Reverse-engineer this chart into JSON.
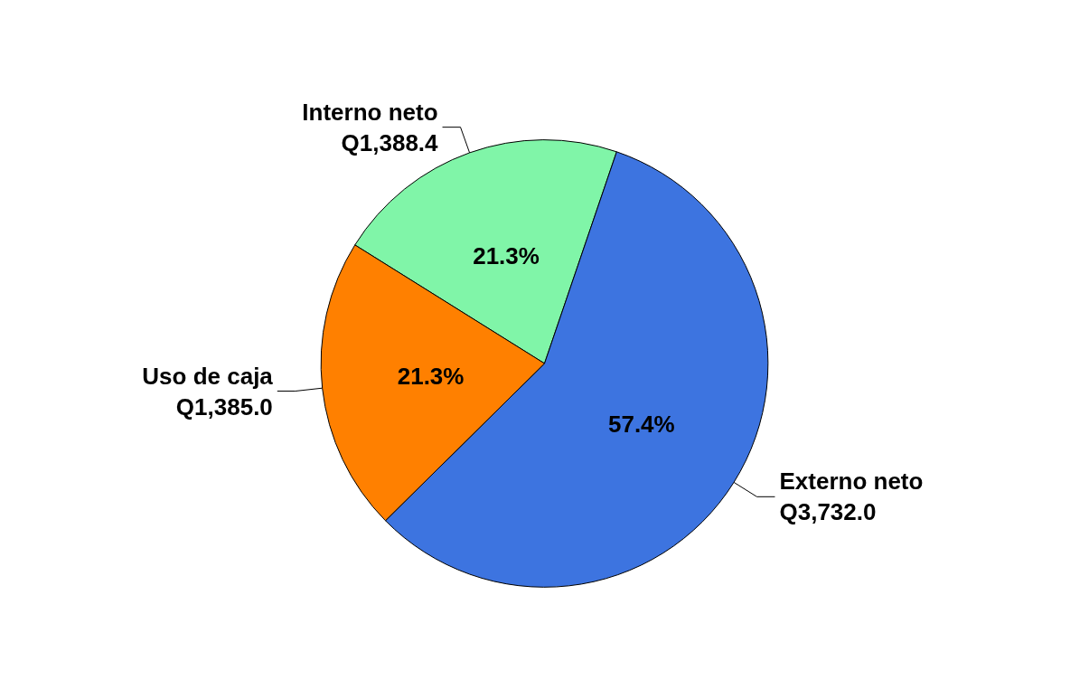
{
  "chart_data": {
    "type": "pie",
    "categories": [
      "Interno neto",
      "Externo neto",
      "Uso de caja"
    ],
    "values": [
      1388.4,
      3732.0,
      1385.0
    ],
    "value_labels": [
      "Q1,388.4",
      "Q3,732.0",
      "Q1,385.0"
    ],
    "colors": [
      "#80f5a8",
      "#3d74e0",
      "#ff8000"
    ],
    "annotations": [
      {
        "text": "21.3%",
        "x": "Interno neto"
      },
      {
        "text": "57.4%",
        "x": "Externo neto"
      },
      {
        "text": "21.3%",
        "x": "Uso de caja"
      }
    ],
    "legend": false
  }
}
